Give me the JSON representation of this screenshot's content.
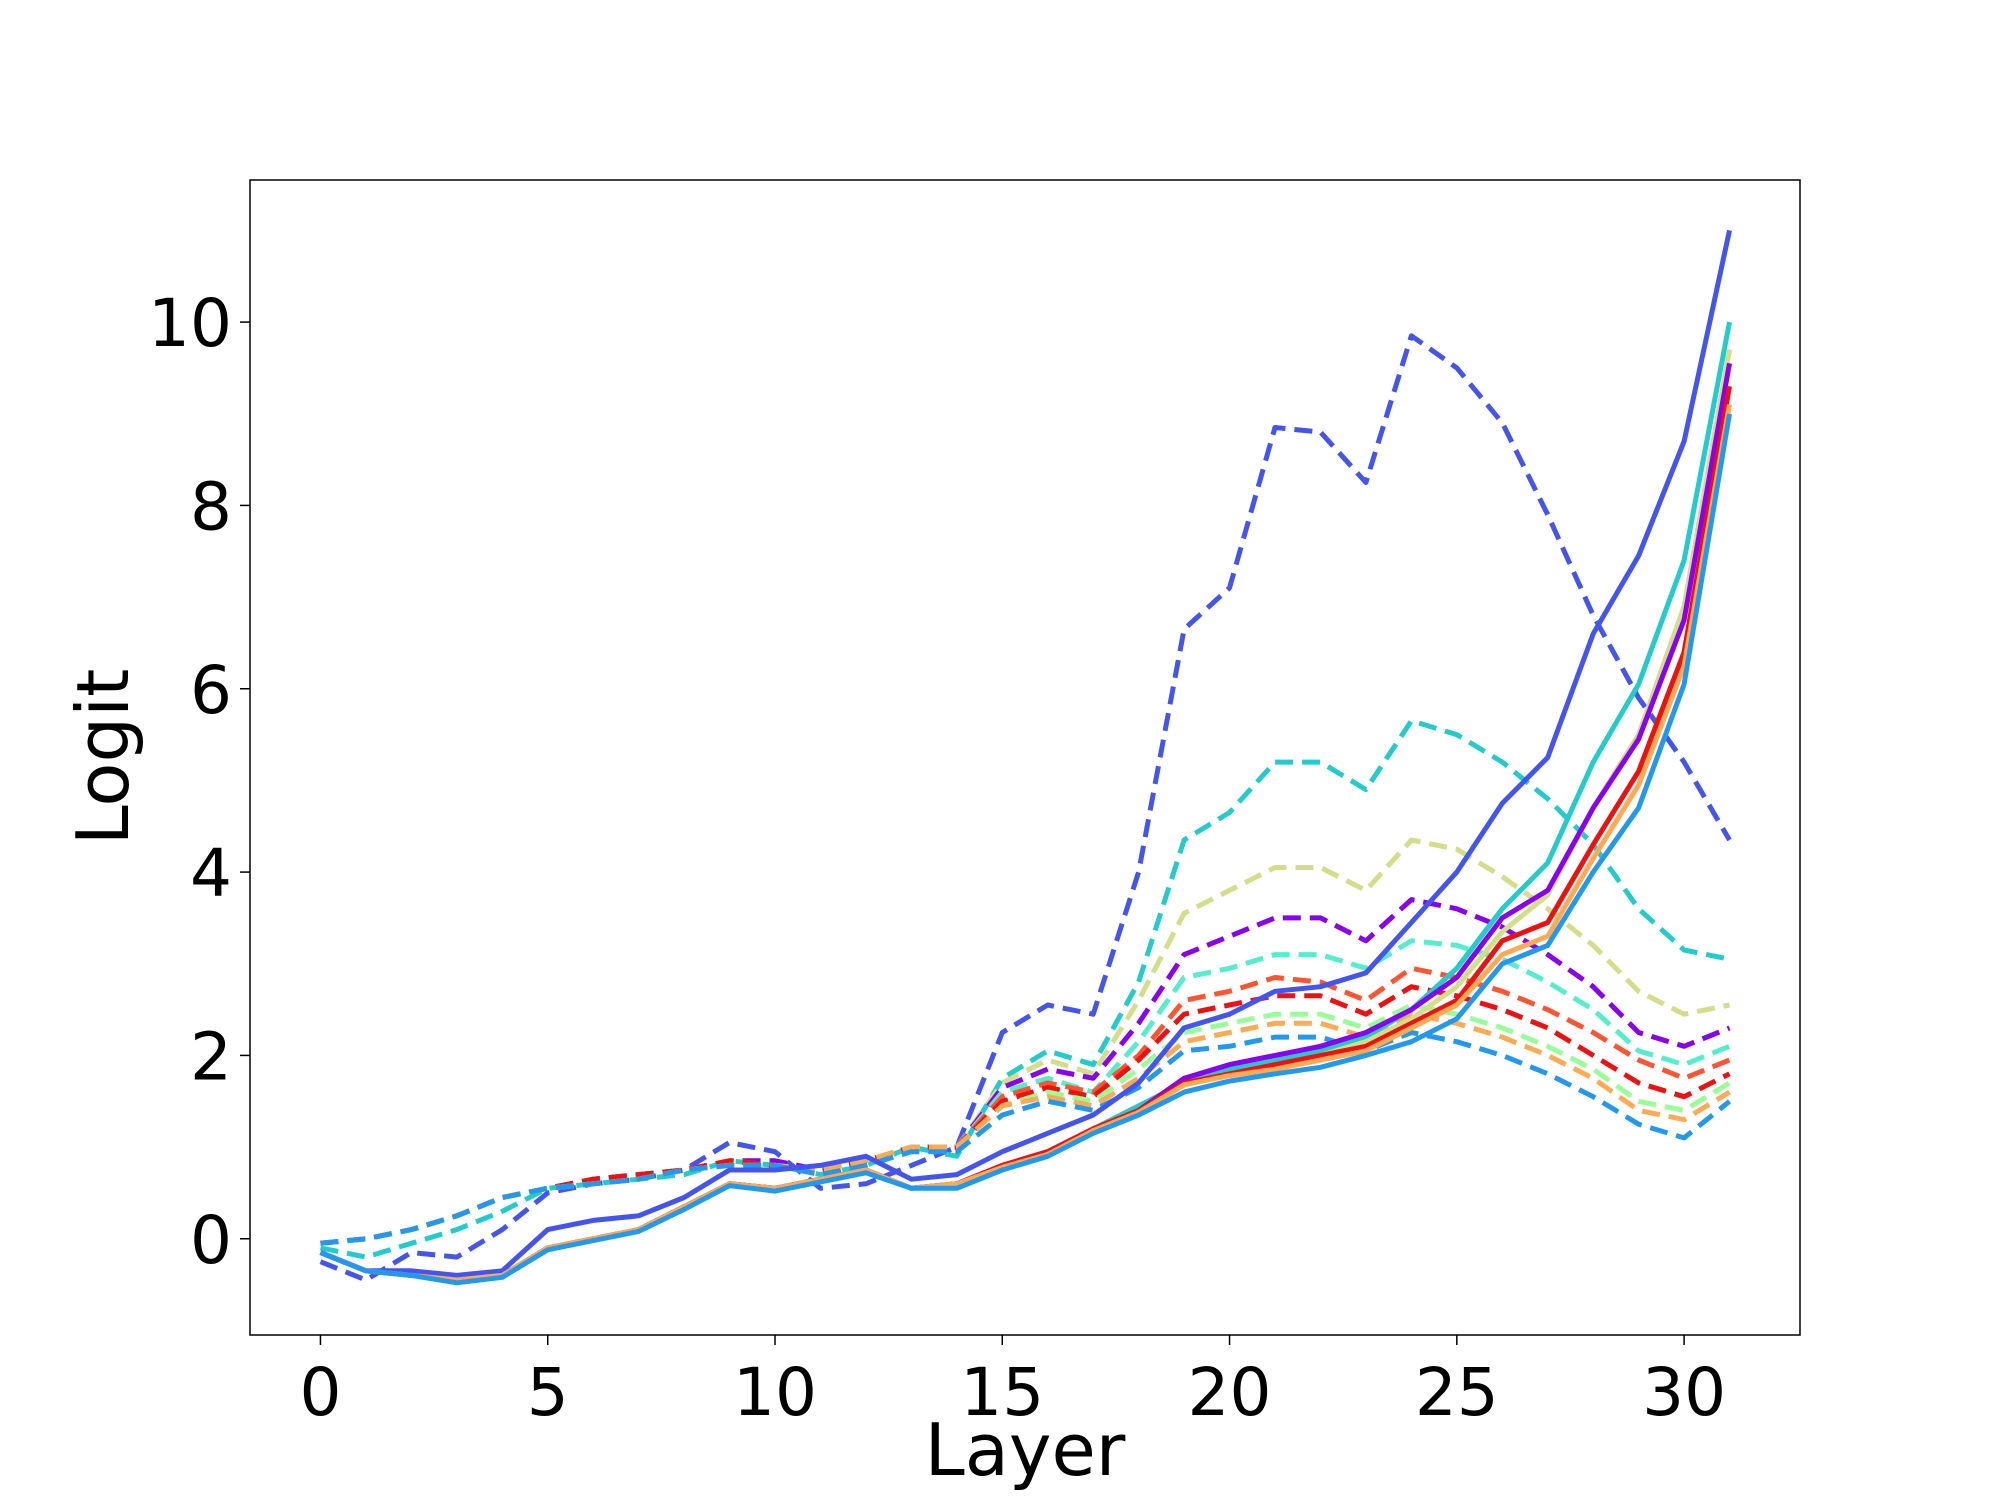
{
  "chart_data": {
    "type": "line",
    "title": "",
    "xlabel": "Layer",
    "ylabel": "Logit",
    "xlim": [
      -1.55,
      32.55
    ],
    "ylim": [
      -1.05,
      11.55
    ],
    "xticks": [
      0,
      5,
      10,
      15,
      20,
      25,
      30
    ],
    "yticks": [
      0,
      2,
      4,
      6,
      8,
      10
    ],
    "grid": false,
    "legend": "none",
    "x": [
      0,
      1,
      2,
      3,
      4,
      5,
      6,
      7,
      8,
      9,
      10,
      11,
      12,
      13,
      14,
      15,
      16,
      17,
      18,
      19,
      20,
      21,
      22,
      23,
      24,
      25,
      26,
      27,
      28,
      29,
      30,
      31
    ],
    "series": [
      {
        "color": "#4455ee",
        "style": "dashed",
        "values": [
          -0.25,
          -0.45,
          -0.15,
          -0.2,
          0.1,
          0.5,
          0.6,
          0.65,
          0.75,
          1.05,
          0.95,
          0.55,
          0.6,
          0.8,
          1.0,
          2.25,
          2.55,
          2.45,
          4.0,
          6.65,
          7.1,
          8.85,
          8.8,
          8.25,
          9.85,
          9.5,
          8.9,
          7.9,
          6.8,
          5.9,
          5.2,
          4.35
        ]
      },
      {
        "color": "#22cccc",
        "style": "dashed",
        "values": [
          -0.1,
          -0.2,
          -0.05,
          0.1,
          0.3,
          0.55,
          0.6,
          0.65,
          0.7,
          0.85,
          0.8,
          0.7,
          0.8,
          1.0,
          0.9,
          1.75,
          2.05,
          1.9,
          2.8,
          4.35,
          4.65,
          5.2,
          5.2,
          4.9,
          5.65,
          5.5,
          5.2,
          4.8,
          4.3,
          3.6,
          3.15,
          3.05
        ]
      },
      {
        "color": "#d4dd88",
        "style": "dashed",
        "values": [
          -0.05,
          0.0,
          0.1,
          0.25,
          0.45,
          0.55,
          0.65,
          0.7,
          0.75,
          0.85,
          0.85,
          0.75,
          0.85,
          1.0,
          1.0,
          1.7,
          1.95,
          1.8,
          2.6,
          3.55,
          3.8,
          4.05,
          4.05,
          3.8,
          4.35,
          4.25,
          3.95,
          3.6,
          3.2,
          2.7,
          2.45,
          2.55
        ]
      },
      {
        "color": "#8800ee",
        "style": "dashed",
        "values": [
          -0.05,
          0.0,
          0.1,
          0.25,
          0.45,
          0.55,
          0.65,
          0.7,
          0.75,
          0.85,
          0.85,
          0.75,
          0.85,
          1.0,
          1.0,
          1.65,
          1.85,
          1.75,
          2.35,
          3.1,
          3.3,
          3.5,
          3.5,
          3.25,
          3.7,
          3.6,
          3.4,
          3.1,
          2.75,
          2.25,
          2.1,
          2.3
        ]
      },
      {
        "color": "#55eecc",
        "style": "dashed",
        "values": [
          -0.05,
          0.0,
          0.1,
          0.25,
          0.45,
          0.55,
          0.65,
          0.7,
          0.75,
          0.85,
          0.8,
          0.75,
          0.85,
          1.0,
          1.0,
          1.6,
          1.75,
          1.6,
          2.15,
          2.85,
          2.95,
          3.1,
          3.1,
          2.95,
          3.25,
          3.2,
          3.05,
          2.8,
          2.5,
          2.05,
          1.9,
          2.1
        ]
      },
      {
        "color": "#ff5533",
        "style": "dashed",
        "values": [
          -0.05,
          0.0,
          0.1,
          0.25,
          0.45,
          0.55,
          0.65,
          0.7,
          0.75,
          0.85,
          0.8,
          0.75,
          0.85,
          1.0,
          1.0,
          1.55,
          1.7,
          1.6,
          2.0,
          2.6,
          2.7,
          2.85,
          2.8,
          2.6,
          2.95,
          2.85,
          2.7,
          2.5,
          2.25,
          1.95,
          1.75,
          1.95
        ]
      },
      {
        "color": "#ee1111",
        "style": "dashed",
        "values": [
          -0.05,
          0.0,
          0.1,
          0.25,
          0.45,
          0.55,
          0.65,
          0.7,
          0.75,
          0.85,
          0.8,
          0.75,
          0.85,
          1.0,
          1.0,
          1.5,
          1.65,
          1.55,
          1.95,
          2.45,
          2.55,
          2.65,
          2.65,
          2.45,
          2.75,
          2.65,
          2.5,
          2.3,
          2.0,
          1.7,
          1.55,
          1.8
        ]
      },
      {
        "color": "#99ff99",
        "style": "dashed",
        "values": [
          -0.05,
          0.0,
          0.1,
          0.25,
          0.45,
          0.55,
          0.6,
          0.65,
          0.75,
          0.8,
          0.8,
          0.75,
          0.85,
          1.0,
          1.0,
          1.45,
          1.6,
          1.5,
          1.85,
          2.25,
          2.35,
          2.45,
          2.45,
          2.3,
          2.55,
          2.45,
          2.3,
          2.1,
          1.85,
          1.5,
          1.4,
          1.7
        ]
      },
      {
        "color": "#ffaa55",
        "style": "dashed",
        "values": [
          -0.05,
          0.0,
          0.1,
          0.25,
          0.45,
          0.55,
          0.6,
          0.65,
          0.75,
          0.8,
          0.8,
          0.75,
          0.85,
          1.0,
          1.0,
          1.45,
          1.55,
          1.45,
          1.75,
          2.15,
          2.25,
          2.35,
          2.35,
          2.2,
          2.45,
          2.35,
          2.2,
          2.0,
          1.75,
          1.4,
          1.3,
          1.6
        ]
      },
      {
        "color": "#2299ee",
        "style": "dashed",
        "values": [
          -0.05,
          0.0,
          0.1,
          0.25,
          0.45,
          0.55,
          0.6,
          0.65,
          0.75,
          0.8,
          0.8,
          0.7,
          0.8,
          0.95,
          0.95,
          1.35,
          1.5,
          1.4,
          1.65,
          2.05,
          2.1,
          2.2,
          2.2,
          2.05,
          2.25,
          2.15,
          2.0,
          1.8,
          1.55,
          1.25,
          1.1,
          1.5
        ]
      },
      {
        "color": "#4455ee",
        "style": "solid",
        "values": [
          -0.15,
          -0.35,
          -0.35,
          -0.4,
          -0.35,
          0.1,
          0.2,
          0.25,
          0.45,
          0.75,
          0.75,
          0.8,
          0.9,
          0.65,
          0.7,
          0.95,
          1.15,
          1.35,
          1.7,
          2.3,
          2.45,
          2.7,
          2.75,
          2.9,
          3.45,
          4.0,
          4.75,
          5.25,
          6.6,
          7.45,
          8.7,
          11.0
        ]
      },
      {
        "color": "#22cccc",
        "style": "solid",
        "values": [
          -0.15,
          -0.35,
          -0.4,
          -0.45,
          -0.4,
          -0.1,
          0.0,
          0.1,
          0.35,
          0.6,
          0.55,
          0.65,
          0.75,
          0.55,
          0.6,
          0.8,
          0.95,
          1.2,
          1.45,
          1.7,
          1.85,
          1.95,
          2.05,
          2.2,
          2.5,
          2.95,
          3.6,
          4.1,
          5.2,
          6.05,
          7.4,
          10.0
        ]
      },
      {
        "color": "#d4dd88",
        "style": "solid",
        "values": [
          -0.15,
          -0.35,
          -0.4,
          -0.45,
          -0.4,
          -0.1,
          0.0,
          0.1,
          0.35,
          0.6,
          0.55,
          0.65,
          0.75,
          0.55,
          0.6,
          0.8,
          0.95,
          1.2,
          1.4,
          1.7,
          1.8,
          1.9,
          2.0,
          2.15,
          2.4,
          2.75,
          3.35,
          3.75,
          4.7,
          5.5,
          6.9,
          9.7
        ]
      },
      {
        "color": "#8800ee",
        "style": "solid",
        "values": [
          -0.15,
          -0.35,
          -0.4,
          -0.45,
          -0.4,
          -0.1,
          0.0,
          0.1,
          0.35,
          0.6,
          0.55,
          0.65,
          0.75,
          0.55,
          0.6,
          0.8,
          0.95,
          1.2,
          1.4,
          1.75,
          1.9,
          2.0,
          2.1,
          2.25,
          2.5,
          2.85,
          3.5,
          3.8,
          4.7,
          5.45,
          6.75,
          9.55
        ]
      },
      {
        "color": "#ee1111",
        "style": "solid",
        "values": [
          -0.15,
          -0.35,
          -0.4,
          -0.45,
          -0.4,
          -0.1,
          0.0,
          0.1,
          0.35,
          0.6,
          0.55,
          0.65,
          0.75,
          0.55,
          0.6,
          0.8,
          0.95,
          1.2,
          1.4,
          1.7,
          1.8,
          1.9,
          2.0,
          2.1,
          2.35,
          2.6,
          3.25,
          3.45,
          4.3,
          5.1,
          6.4,
          9.3
        ]
      },
      {
        "color": "#ffaa55",
        "style": "solid",
        "values": [
          -0.15,
          -0.35,
          -0.4,
          -0.45,
          -0.4,
          -0.1,
          0.0,
          0.1,
          0.35,
          0.6,
          0.55,
          0.65,
          0.75,
          0.55,
          0.6,
          0.78,
          0.92,
          1.18,
          1.38,
          1.68,
          1.78,
          1.85,
          1.95,
          2.05,
          2.3,
          2.55,
          3.1,
          3.3,
          4.15,
          4.95,
          6.25,
          9.1
        ]
      },
      {
        "color": "#2299ee",
        "style": "solid",
        "values": [
          -0.15,
          -0.35,
          -0.4,
          -0.48,
          -0.42,
          -0.12,
          -0.02,
          0.08,
          0.32,
          0.58,
          0.52,
          0.62,
          0.72,
          0.55,
          0.55,
          0.75,
          0.9,
          1.15,
          1.35,
          1.6,
          1.72,
          1.8,
          1.87,
          2.0,
          2.15,
          2.4,
          3.0,
          3.2,
          4.0,
          4.7,
          6.05,
          9.0
        ]
      }
    ]
  }
}
